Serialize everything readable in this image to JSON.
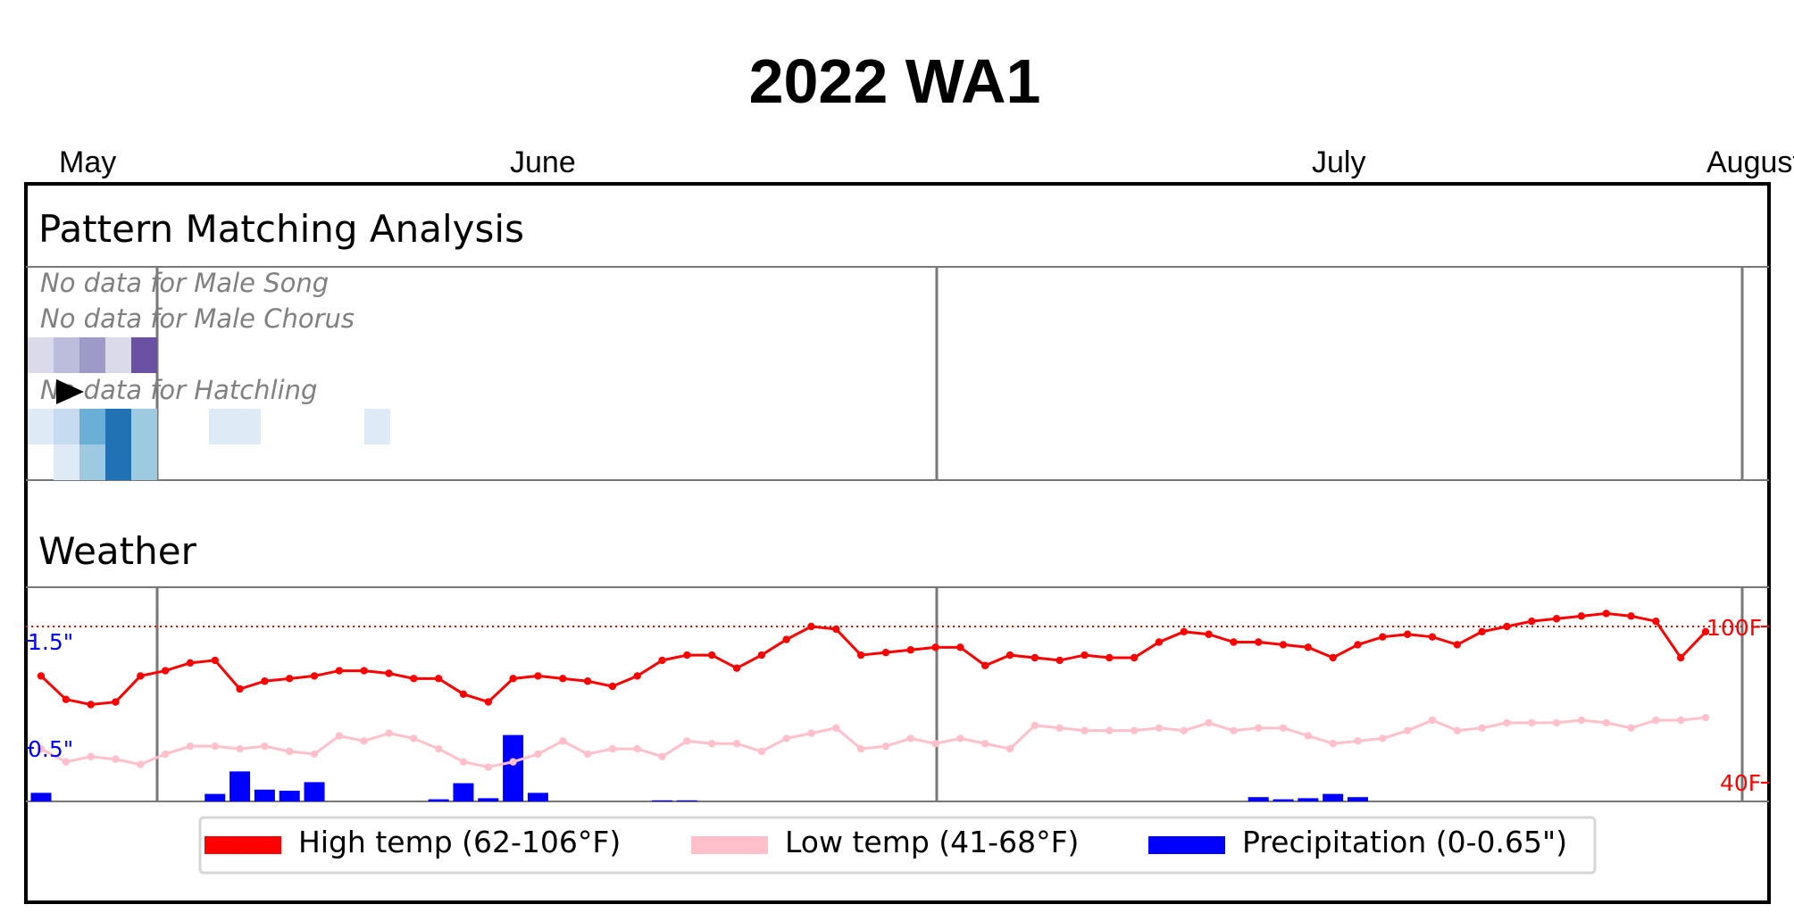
{
  "title": "2022 WA1",
  "months": [
    "May",
    "June",
    "July",
    "August"
  ],
  "pattern_section": {
    "heading": "Pattern Matching Analysis",
    "no_data_labels": [
      "No data for Male Song",
      "No data for Male Chorus",
      "No data for Hatchling"
    ]
  },
  "weather_section": {
    "heading": "Weather"
  },
  "colors": {
    "high_temp": "#ff0000",
    "low_temp": "#ffc0cb",
    "precip": "#0000ff",
    "purple_scale": [
      "#dadaeb",
      "#bcbddc",
      "#9e9ac8",
      "#6a51a3",
      "#3f007d"
    ],
    "blue_scale": [
      "#deebf7",
      "#c6dbef",
      "#9ecae1",
      "#6baed6",
      "#2171b5",
      "#08306b"
    ]
  },
  "chart_data": {
    "type": "line",
    "title": "2022 WA1",
    "x_dates": [
      "2022-05-01",
      "2022-05-02",
      "2022-05-03",
      "2022-05-04",
      "2022-05-05",
      "2022-05-06",
      "2022-05-07",
      "2022-05-08",
      "2022-05-09",
      "2022-05-10",
      "2022-05-11",
      "2022-05-12",
      "2022-05-13",
      "2022-05-14",
      "2022-05-15",
      "2022-05-16",
      "2022-05-17",
      "2022-05-18",
      "2022-05-19",
      "2022-05-20",
      "2022-05-21",
      "2022-05-22",
      "2022-05-23",
      "2022-05-24",
      "2022-05-25",
      "2022-05-26",
      "2022-05-27",
      "2022-05-28",
      "2022-05-29",
      "2022-05-30",
      "2022-05-31",
      "2022-06-01",
      "2022-06-02",
      "2022-06-03",
      "2022-06-04",
      "2022-06-05",
      "2022-06-06",
      "2022-06-07",
      "2022-06-08",
      "2022-06-09",
      "2022-06-10",
      "2022-06-11",
      "2022-06-12",
      "2022-06-13",
      "2022-06-14",
      "2022-06-15",
      "2022-06-16",
      "2022-06-17",
      "2022-06-18",
      "2022-06-19",
      "2022-06-20",
      "2022-06-21",
      "2022-06-22",
      "2022-06-23",
      "2022-06-24",
      "2022-06-25",
      "2022-06-26",
      "2022-06-27",
      "2022-06-28",
      "2022-06-29",
      "2022-06-30",
      "2022-07-01",
      "2022-07-02",
      "2022-07-03",
      "2022-07-04",
      "2022-07-05",
      "2022-07-06",
      "2022-07-07"
    ],
    "series": [
      {
        "name": "High temp (62-106°F)",
        "color": "#ff0000",
        "values": [
          81,
          72,
          70,
          71,
          81,
          83,
          86,
          87,
          76,
          79,
          80,
          81,
          83,
          83,
          82,
          80,
          80,
          74,
          71,
          80,
          81,
          80,
          79,
          77,
          81,
          87,
          89,
          89,
          84,
          89,
          95,
          100,
          99,
          89,
          90,
          91,
          92,
          92,
          85,
          89,
          88,
          87,
          89,
          88,
          88,
          94,
          98,
          97,
          94,
          94,
          93,
          92,
          88,
          93,
          96,
          97,
          96,
          93,
          98,
          100,
          102,
          103,
          104,
          105,
          104,
          102,
          88,
          98
        ]
      },
      {
        "name": "Low temp (41-68°F)",
        "color": "#ffc0cb",
        "values": [
          53,
          48,
          50,
          49,
          47,
          51,
          54,
          54,
          53,
          54,
          52,
          51,
          58,
          56,
          59,
          57,
          53,
          48,
          46,
          48,
          51,
          56,
          51,
          53,
          53,
          50,
          56,
          55,
          55,
          52,
          57,
          59,
          61,
          53,
          54,
          57,
          55,
          57,
          55,
          53,
          62,
          61,
          60,
          60,
          60,
          61,
          60,
          63,
          60,
          61,
          61,
          58,
          55,
          56,
          57,
          60,
          64,
          60,
          61,
          63,
          63,
          63,
          64,
          63,
          61,
          64,
          64,
          65
        ]
      },
      {
        "name": "Precipitation (0-0.65\")",
        "color": "#0000ff",
        "type": "bar",
        "values": [
          0.08,
          0,
          0,
          0,
          0,
          0,
          0,
          0.07,
          0.28,
          0.11,
          0.1,
          0.18,
          0,
          0,
          0,
          0,
          0.02,
          0.17,
          0.03,
          0.62,
          0.08,
          0,
          0,
          0,
          0,
          0.01,
          0.01,
          0,
          0,
          0,
          0,
          0,
          0,
          0,
          0,
          0,
          0,
          0,
          0,
          0,
          0,
          0,
          0,
          0,
          0,
          0,
          0,
          0,
          0,
          0.04,
          0.02,
          0.03,
          0.07,
          0.04,
          0,
          0,
          0,
          0,
          0,
          0,
          0,
          0,
          0,
          0,
          0,
          0,
          0,
          0
        ]
      }
    ],
    "y_right_label_100": "100F",
    "y_right_label_40": "40F",
    "y_left_label_high": "1.5\"",
    "y_left_label_low": "0.5\"",
    "legend": [
      "High temp (62-106°F)",
      "Low temp (41-68°F)",
      "Precipitation (0-0.65\")"
    ],
    "legend_placement": "bottom-center",
    "heatmap": {
      "row1_purple": [
        1,
        2,
        3,
        1,
        4
      ],
      "row2_blue": [
        1,
        2,
        4,
        5,
        3,
        0,
        0,
        1,
        1,
        0,
        0,
        0,
        0,
        1
      ],
      "row3_blue": [
        0,
        1,
        3,
        5,
        3
      ]
    }
  }
}
